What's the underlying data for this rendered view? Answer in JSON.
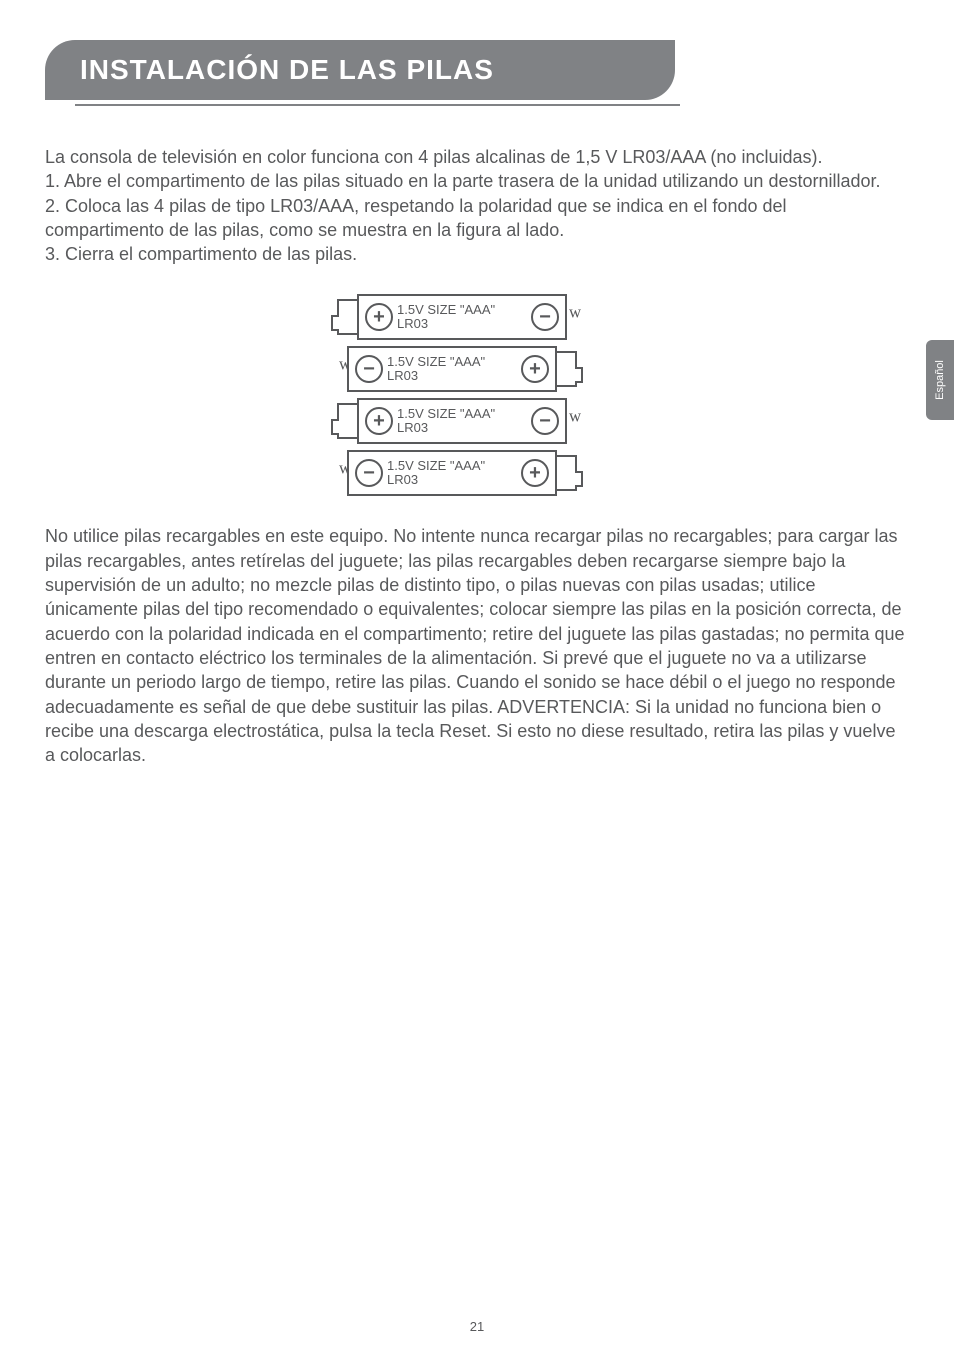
{
  "header": {
    "title": "INSTALACIÓN DE LAS PILAS"
  },
  "sideTab": {
    "label": "Español"
  },
  "intro": {
    "p1": "La consola de televisión en color funciona con 4 pilas alcalinas de 1,5 V LR03/AAA (no incluidas).",
    "p2": "1. Abre el compartimento de las pilas situado en la parte trasera de la unidad utilizando un destornillador.",
    "p3": "2. Coloca las 4 pilas de tipo LR03/AAA, respetando la polaridad que se indica en el fondo del compartimento de las pilas, como se muestra en la figura al lado.",
    "p4": "3. Cierra el compartimento de las pilas."
  },
  "battery": {
    "label_line1": "1.5V SIZE \"AAA\"",
    "label_line2": "LR03",
    "plus": "+",
    "minus": "−"
  },
  "warning": {
    "text": "No utilice pilas recargables en este equipo. No intente nunca recargar pilas no recargables; para cargar las pilas recargables, antes retírelas del juguete; las pilas recargables deben recargarse siempre bajo la supervisión de un adulto; no mezcle pilas de distinto tipo, o pilas nuevas con pilas usadas; utilice únicamente pilas del tipo recomendado o equivalentes; colocar siempre las pilas en la posición correcta, de acuerdo con la polaridad indicada en el compartimento; retire del juguete las pilas gastadas; no permita que entren en contacto eléctrico los terminales de la alimentación. Si prevé que el juguete no va a utilizarse durante un periodo largo de tiempo, retire las pilas. Cuando el sonido se hace débil o el juego no  responde adecuadamente es señal de que debe sustituir las pilas. ADVERTENCIA: Si la unidad no funciona bien o recibe una descarga electrostática, pulsa la tecla Reset. Si esto no diese resultado, retira las pilas y vuelve a colocarlas."
  },
  "pageNumber": "21"
}
